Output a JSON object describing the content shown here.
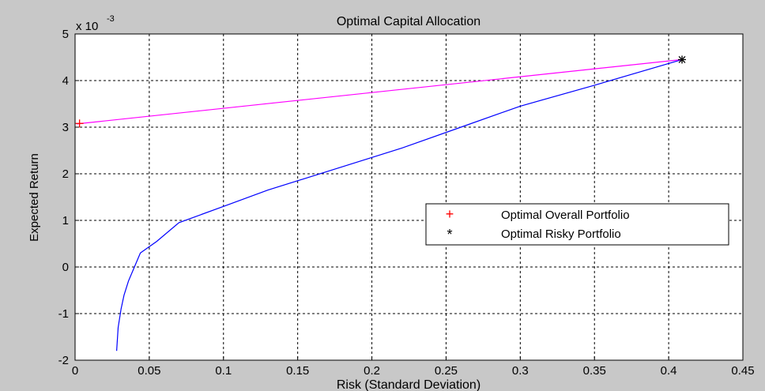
{
  "chart_data": {
    "type": "line",
    "title": "Optimal Capital Allocation",
    "xlabel": "Risk (Standard Deviation)",
    "ylabel": "Expected Return",
    "y_exponent_label": "x 10",
    "y_exponent": "-3",
    "xlim": [
      0,
      0.45
    ],
    "ylim": [
      -2,
      5
    ],
    "xticks": [
      0,
      0.05,
      0.1,
      0.15,
      0.2,
      0.25,
      0.3,
      0.35,
      0.4,
      0.45
    ],
    "xtick_labels": [
      "0",
      "0.05",
      "0.1",
      "0.15",
      "0.2",
      "0.25",
      "0.3",
      "0.35",
      "0.4",
      "0.45"
    ],
    "yticks": [
      -2,
      -1,
      0,
      1,
      2,
      3,
      4,
      5
    ],
    "ytick_labels": [
      "-2",
      "-1",
      "0",
      "1",
      "2",
      "3",
      "4",
      "5"
    ],
    "grid": true,
    "legend_placement": "center-right",
    "series": [
      {
        "kind": "line",
        "color": "#0000ff",
        "x": [
          0.028,
          0.029,
          0.031,
          0.033,
          0.036,
          0.04,
          0.044,
          0.055,
          0.07,
          0.1,
          0.13,
          0.17,
          0.22,
          0.26,
          0.3,
          0.35,
          0.409
        ],
        "y": [
          -1.8,
          -1.3,
          -0.9,
          -0.6,
          -0.3,
          0.0,
          0.3,
          0.55,
          0.95,
          1.3,
          1.65,
          2.05,
          2.55,
          3.0,
          3.45,
          3.9,
          4.45
        ]
      },
      {
        "kind": "line",
        "color": "#ff00ff",
        "x": [
          0.001,
          0.409
        ],
        "y": [
          3.07,
          4.45
        ]
      },
      {
        "kind": "marker",
        "name": "Optimal Overall Portfolio",
        "marker": "+",
        "color": "#ff0000",
        "x": [
          0.003
        ],
        "y": [
          3.08
        ]
      },
      {
        "kind": "marker",
        "name": "Optimal Risky Portfolio",
        "marker": "*",
        "color": "#000000",
        "x": [
          0.409
        ],
        "y": [
          4.45
        ]
      }
    ]
  }
}
